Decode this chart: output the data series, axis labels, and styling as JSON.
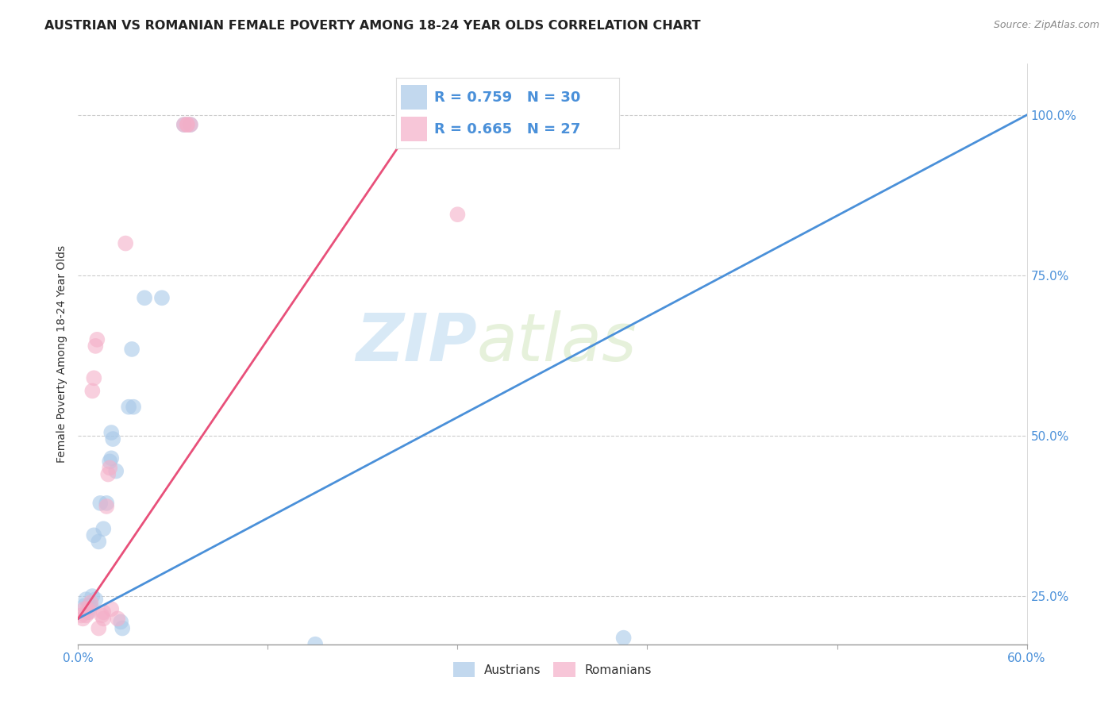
{
  "title": "AUSTRIAN VS ROMANIAN FEMALE POVERTY AMONG 18-24 YEAR OLDS CORRELATION CHART",
  "source": "Source: ZipAtlas.com",
  "ylabel": "Female Poverty Among 18-24 Year Olds",
  "xlim": [
    0.0,
    0.6
  ],
  "ylim": [
    0.175,
    1.08
  ],
  "xticks": [
    0.0,
    0.12,
    0.24,
    0.36,
    0.48,
    0.6
  ],
  "xtick_labels": [
    "0.0%",
    "",
    "",
    "",
    "",
    "60.0%"
  ],
  "yticks_right": [
    0.25,
    0.5,
    0.75,
    1.0
  ],
  "ytick_labels_right": [
    "25.0%",
    "50.0%",
    "75.0%",
    "100.0%"
  ],
  "watermark_zip": "ZIP",
  "watermark_atlas": "atlas",
  "blue_color": "#a8c8e8",
  "pink_color": "#f4afc8",
  "blue_line_color": "#4a90d9",
  "pink_line_color": "#e8507a",
  "blue_scatter": [
    [
      0.004,
      0.235
    ],
    [
      0.005,
      0.245
    ],
    [
      0.006,
      0.225
    ],
    [
      0.007,
      0.235
    ],
    [
      0.008,
      0.235
    ],
    [
      0.009,
      0.25
    ],
    [
      0.01,
      0.345
    ],
    [
      0.011,
      0.245
    ],
    [
      0.013,
      0.335
    ],
    [
      0.014,
      0.395
    ],
    [
      0.016,
      0.355
    ],
    [
      0.018,
      0.395
    ],
    [
      0.02,
      0.46
    ],
    [
      0.021,
      0.465
    ],
    [
      0.021,
      0.505
    ],
    [
      0.022,
      0.495
    ],
    [
      0.024,
      0.445
    ],
    [
      0.027,
      0.21
    ],
    [
      0.028,
      0.2
    ],
    [
      0.032,
      0.545
    ],
    [
      0.034,
      0.635
    ],
    [
      0.035,
      0.545
    ],
    [
      0.042,
      0.715
    ],
    [
      0.053,
      0.715
    ],
    [
      0.067,
      0.985
    ],
    [
      0.071,
      0.985
    ],
    [
      0.15,
      0.175
    ],
    [
      0.235,
      0.985
    ],
    [
      0.247,
      0.985
    ],
    [
      0.345,
      0.185
    ]
  ],
  "pink_scatter": [
    [
      0.002,
      0.22
    ],
    [
      0.003,
      0.215
    ],
    [
      0.004,
      0.23
    ],
    [
      0.005,
      0.22
    ],
    [
      0.006,
      0.23
    ],
    [
      0.007,
      0.225
    ],
    [
      0.008,
      0.24
    ],
    [
      0.009,
      0.57
    ],
    [
      0.01,
      0.59
    ],
    [
      0.011,
      0.64
    ],
    [
      0.012,
      0.65
    ],
    [
      0.013,
      0.2
    ],
    [
      0.015,
      0.22
    ],
    [
      0.016,
      0.215
    ],
    [
      0.016,
      0.225
    ],
    [
      0.018,
      0.39
    ],
    [
      0.019,
      0.44
    ],
    [
      0.02,
      0.45
    ],
    [
      0.021,
      0.23
    ],
    [
      0.025,
      0.215
    ],
    [
      0.03,
      0.8
    ],
    [
      0.067,
      0.985
    ],
    [
      0.069,
      0.985
    ],
    [
      0.071,
      0.985
    ],
    [
      0.069,
      0.985
    ],
    [
      0.24,
      0.845
    ],
    [
      0.24,
      0.985
    ]
  ],
  "blue_line_x": [
    0.0,
    0.6
  ],
  "blue_line_y": [
    0.215,
    1.0
  ],
  "pink_line_x": [
    0.0,
    0.23
  ],
  "pink_line_y": [
    0.215,
    1.05
  ]
}
